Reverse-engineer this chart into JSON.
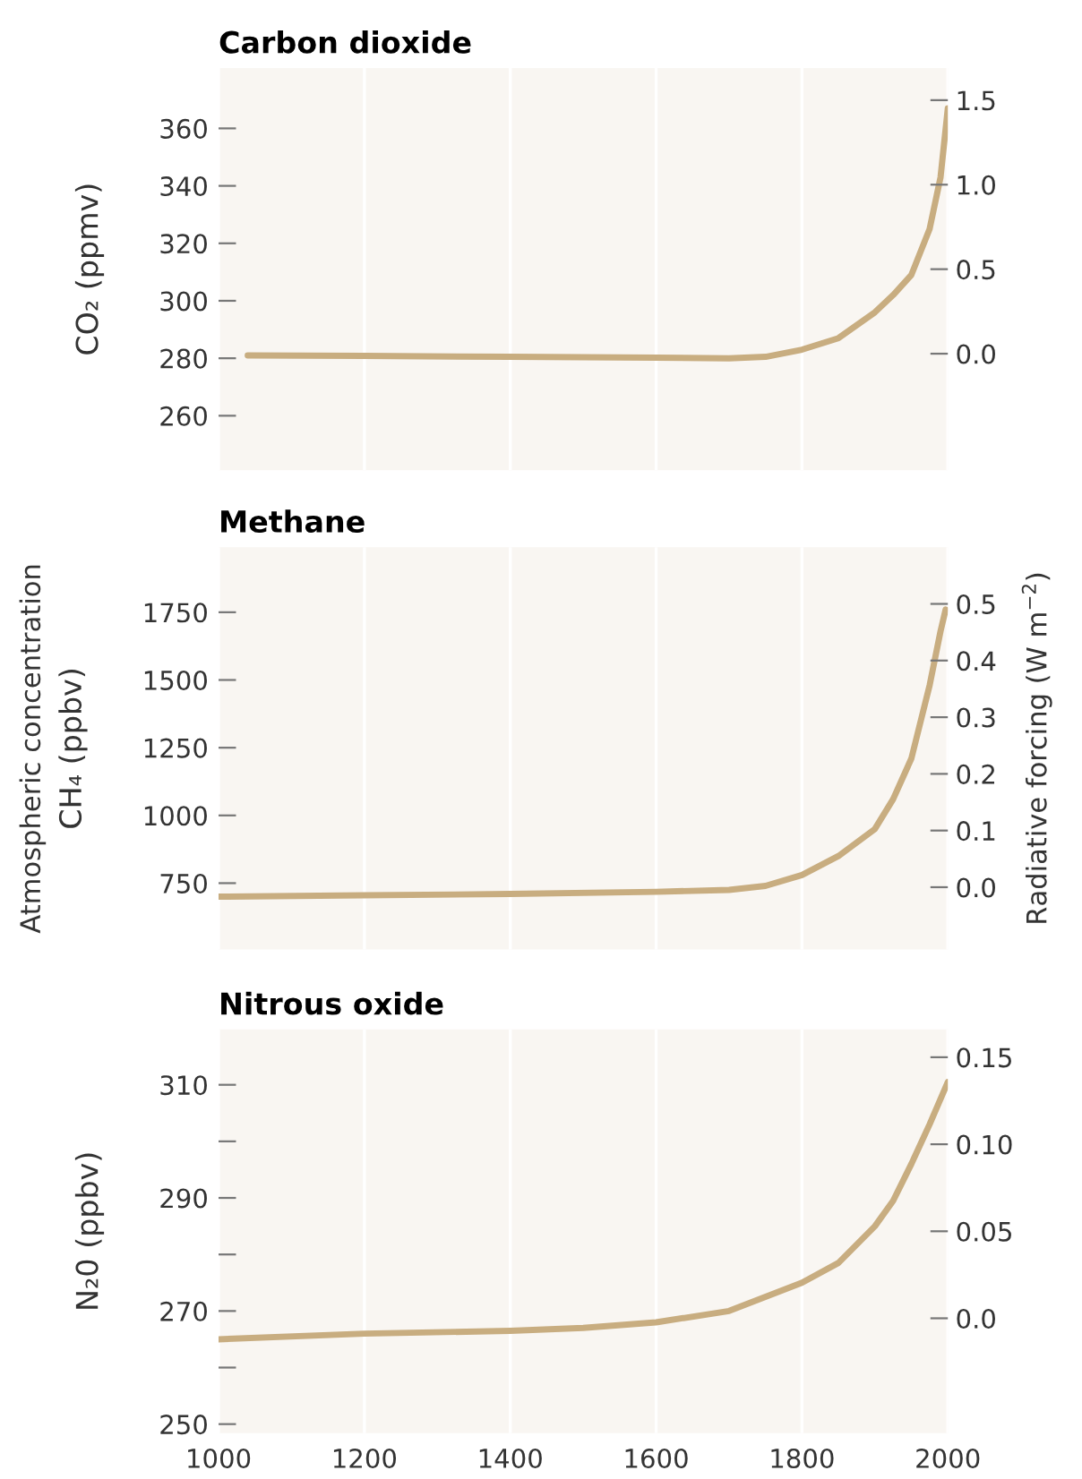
{
  "chart_data": [
    {
      "type": "line",
      "title": "Carbon dioxide",
      "ylabel": "CO₂ (ppmv)",
      "x": [
        1040,
        1200,
        1400,
        1600,
        1700,
        1750,
        1800,
        1850,
        1900,
        1925,
        1950,
        1975,
        1990,
        2000
      ],
      "series": [
        {
          "color": "#c8ad80",
          "values": [
            281,
            280.8,
            280.5,
            280.2,
            280,
            280.5,
            283,
            287,
            296,
            302,
            309,
            325,
            343,
            367
          ]
        }
      ],
      "xlim": [
        1000,
        2000
      ],
      "xticks": [
        1000,
        1200,
        1400,
        1600,
        1800,
        2000
      ],
      "ylim": [
        241,
        381
      ],
      "yticks": [
        260,
        280,
        300,
        320,
        340,
        360
      ],
      "y2lim": [
        -0.69,
        1.69
      ],
      "y2ticks": [
        {
          "value": 0,
          "label": "0.0"
        },
        0.5,
        {
          "value": 1,
          "label": "1.0"
        },
        1.5
      ],
      "tick_labels": "y",
      "grid": "x",
      "legend": false,
      "marker": "none",
      "line_style": "solid"
    },
    {
      "type": "line",
      "title": "Methane",
      "ylabel": "CH₄ (ppbv)",
      "y2label": "Radiative forcing (W m$^{−2}$)",
      "annotations": [
        "Atmospheric concentration"
      ],
      "x": [
        1000,
        1200,
        1400,
        1600,
        1700,
        1750,
        1800,
        1850,
        1900,
        1925,
        1950,
        1975,
        1990,
        1997
      ],
      "series": [
        {
          "color": "#c8ad80",
          "values": [
            700,
            705,
            710,
            718,
            725,
            740,
            780,
            850,
            950,
            1060,
            1210,
            1480,
            1680,
            1760
          ]
        }
      ],
      "xlim": [
        1000,
        2000
      ],
      "xticks": [
        1000,
        1200,
        1400,
        1600,
        1800,
        2000
      ],
      "ylim": [
        505,
        1990
      ],
      "yticks": [
        750,
        1000,
        1250,
        1500,
        1750
      ],
      "y2lim": [
        -0.11,
        0.6
      ],
      "y2ticks": [
        {
          "value": 0,
          "label": "0.0"
        },
        0.1,
        0.2,
        0.3,
        0.4,
        0.5
      ],
      "tick_labels": "y",
      "grid": "x",
      "legend": false,
      "marker": "none",
      "line_style": "solid"
    },
    {
      "type": "line",
      "title": "Nitrous oxide",
      "ylabel": "N₂0 (ppbv)",
      "x": [
        1000,
        1200,
        1400,
        1500,
        1600,
        1700,
        1800,
        1850,
        1900,
        1925,
        1950,
        1975,
        2000
      ],
      "series": [
        {
          "color": "#c8ad80",
          "values": [
            265,
            266,
            266.5,
            267,
            268,
            270,
            275,
            278.5,
            285,
            289.5,
            296,
            303,
            310.5
          ]
        }
      ],
      "xlim": [
        1000,
        2000
      ],
      "xticks": [
        1000,
        1200,
        1400,
        1600,
        1800,
        2000
      ],
      "ylim": [
        248.4,
        319.8
      ],
      "yticks": [
        250,
        {
          "value": 260,
          "label": null
        },
        270,
        {
          "value": 280,
          "label": null
        },
        290,
        {
          "value": 300,
          "label": null
        },
        310
      ],
      "y2lim": [
        -0.066,
        0.166
      ],
      "y2ticks": [
        {
          "value": 0,
          "label": "0.0"
        },
        0.05,
        {
          "value": 0.1,
          "label": "0.10"
        },
        0.15
      ],
      "grid": "x",
      "legend": false,
      "marker": "none",
      "line_style": "solid"
    }
  ]
}
